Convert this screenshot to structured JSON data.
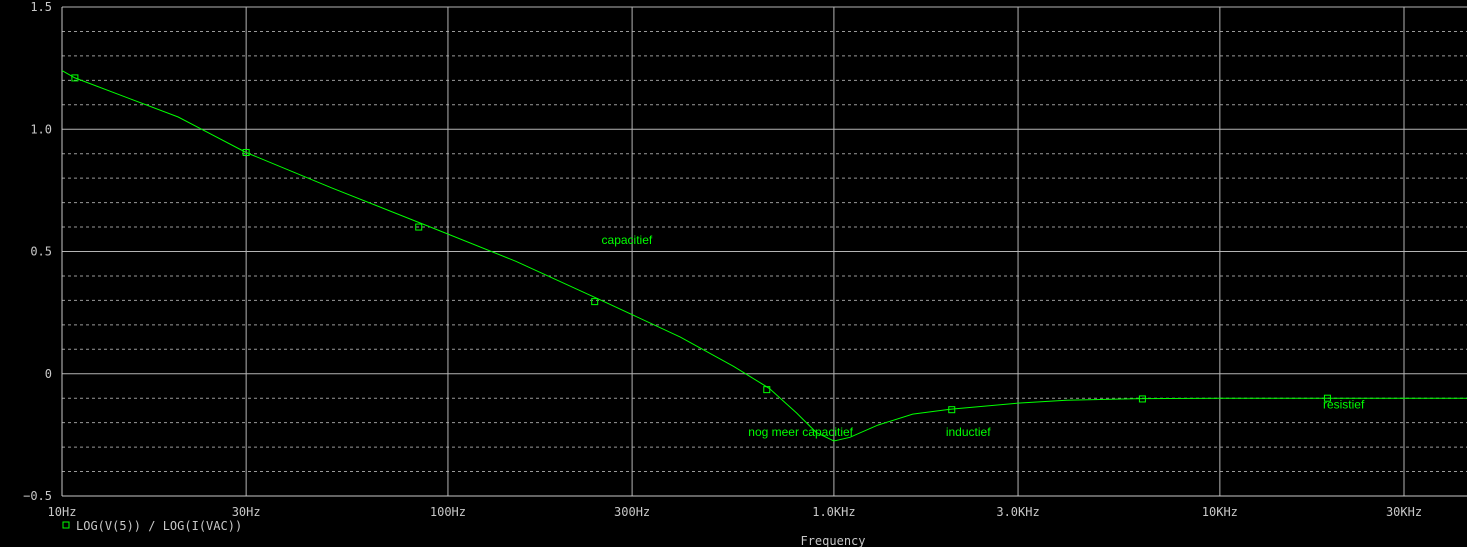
{
  "chart_data": {
    "type": "line",
    "xscale": "log",
    "xlim": [
      10,
      50000
    ],
    "ylim": [
      -0.5,
      1.5
    ],
    "xlabel": "Frequency",
    "grid": true,
    "x_ticks": [
      {
        "v": 10,
        "label": "10Hz"
      },
      {
        "v": 30,
        "label": "30Hz"
      },
      {
        "v": 100,
        "label": "100Hz"
      },
      {
        "v": 300,
        "label": "300Hz"
      },
      {
        "v": 1000,
        "label": "1.0KHz"
      },
      {
        "v": 3000,
        "label": "3.0KHz"
      },
      {
        "v": 10000,
        "label": "10KHz"
      },
      {
        "v": 30000,
        "label": "30KHz"
      }
    ],
    "y_ticks": [
      {
        "v": 1.5,
        "label": "1.5"
      },
      {
        "v": 1.0,
        "label": "1.0"
      },
      {
        "v": 0.5,
        "label": "0.5"
      },
      {
        "v": 0,
        "label": "0"
      },
      {
        "v": -0.5,
        "label": "−0.5"
      }
    ],
    "y_minor_step": 0.1,
    "series": [
      {
        "name": "LOG(V(5)) / LOG(I(VAC))",
        "color": "#00ff00",
        "marker": "square",
        "points": [
          [
            10,
            1.24
          ],
          [
            10.8,
            1.21
          ],
          [
            20,
            1.05
          ],
          [
            30,
            0.905
          ],
          [
            50,
            0.76
          ],
          [
            90,
            0.6
          ],
          [
            150,
            0.46
          ],
          [
            250,
            0.3
          ],
          [
            400,
            0.15
          ],
          [
            550,
            0.03
          ],
          [
            680,
            -0.06
          ],
          [
            800,
            -0.16
          ],
          [
            900,
            -0.24
          ],
          [
            1000,
            -0.275
          ],
          [
            1100,
            -0.26
          ],
          [
            1300,
            -0.21
          ],
          [
            1600,
            -0.165
          ],
          [
            2000,
            -0.145
          ],
          [
            3000,
            -0.12
          ],
          [
            4000,
            -0.108
          ],
          [
            6000,
            -0.102
          ],
          [
            10000,
            -0.1
          ],
          [
            20000,
            -0.1
          ],
          [
            50000,
            -0.1
          ]
        ],
        "markers": [
          [
            10.8,
            1.21
          ],
          [
            30,
            0.905
          ],
          [
            84,
            0.6
          ],
          [
            240,
            0.295
          ],
          [
            670,
            -0.065
          ],
          [
            2020,
            -0.147
          ],
          [
            6300,
            -0.103
          ],
          [
            19000,
            -0.1
          ]
        ]
      }
    ],
    "annotations": [
      {
        "text": "capacitief",
        "x": 250,
        "y": 0.53
      },
      {
        "text": "nog meer capacitief",
        "x": 600,
        "y": -0.255
      },
      {
        "text": "inductief",
        "x": 1950,
        "y": -0.255
      },
      {
        "text": "resistief",
        "x": 18500,
        "y": -0.143
      }
    ]
  }
}
